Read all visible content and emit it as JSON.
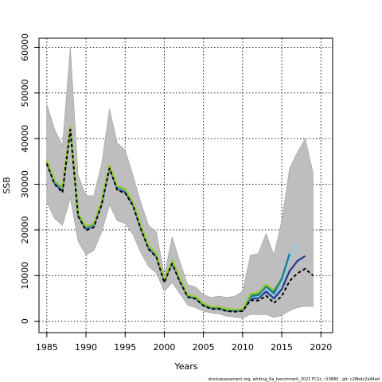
{
  "chart_data": {
    "type": "line",
    "xlabel": "Years",
    "ylabel": "SSB",
    "xlim": [
      1984,
      2021.5
    ],
    "ylim": [
      -2500,
      62000
    ],
    "x_ticks": [
      1985,
      1990,
      1995,
      2000,
      2005,
      2010,
      2015,
      2020
    ],
    "y_ticks": [
      0,
      10000,
      20000,
      30000,
      40000,
      50000,
      60000
    ],
    "grid": true,
    "grid_style": "dotted",
    "footnote": "stockassessment.org, whiting_6a_benchmark_2021 FC2c, r13880 , git: c28bdc2a44ad",
    "band": {
      "color": "#bebebe",
      "years": [
        1985,
        1986,
        1987,
        1988,
        1989,
        1990,
        1991,
        1992,
        1993,
        1994,
        1995,
        1996,
        1997,
        1998,
        1999,
        2000,
        2001,
        2002,
        2003,
        2004,
        2005,
        2006,
        2007,
        2008,
        2009,
        2010,
        2011,
        2012,
        2013,
        2014,
        2015,
        2016,
        2017,
        2018,
        2019
      ],
      "upper": [
        47500,
        42000,
        38500,
        60000,
        32000,
        27500,
        27500,
        34500,
        46500,
        39000,
        37500,
        32000,
        26000,
        21000,
        19500,
        10000,
        18500,
        13000,
        8000,
        7500,
        5800,
        5200,
        5500,
        5200,
        5500,
        6500,
        14500,
        14800,
        19200,
        14500,
        22000,
        33500,
        37000,
        40000,
        32500
      ],
      "lower": [
        26000,
        22500,
        21000,
        27000,
        17500,
        14500,
        15500,
        19500,
        25500,
        22000,
        21500,
        19000,
        15000,
        12000,
        10500,
        6500,
        8500,
        6000,
        3500,
        3000,
        2200,
        1800,
        1600,
        1100,
        900,
        700,
        1500,
        1400,
        1500,
        800,
        1300,
        2300,
        3000,
        3300,
        3200
      ]
    },
    "series": [
      {
        "color": "#000000",
        "style": "dashed",
        "x": [
          1985,
          1986,
          1987,
          1988,
          1989,
          1990,
          1991,
          1992,
          1993,
          1994,
          1995,
          1996,
          1997,
          1998,
          1999,
          2000,
          2001,
          2002,
          2003,
          2004,
          2005,
          2006,
          2007,
          2008,
          2009,
          2010,
          2011,
          2012,
          2013,
          2014,
          2015,
          2016,
          2017,
          2018,
          2019
        ],
        "y": [
          34500,
          30000,
          28200,
          42000,
          23000,
          19900,
          20600,
          25500,
          33500,
          28700,
          28100,
          25300,
          20200,
          15800,
          14000,
          8500,
          12600,
          8600,
          5300,
          4900,
          3400,
          2700,
          2700,
          2200,
          2100,
          2200,
          4600,
          4500,
          5600,
          4000,
          5500,
          8800,
          10500,
          11500,
          10000
        ]
      },
      {
        "color": "#1f3a93",
        "style": "solid",
        "x": [
          1985,
          1986,
          1987,
          1988,
          1989,
          1990,
          1991,
          1992,
          1993,
          1994,
          1995,
          1996,
          1997,
          1998,
          1999,
          2000,
          2001,
          2002,
          2003,
          2004,
          2005,
          2006,
          2007,
          2008,
          2009,
          2010,
          2011,
          2012,
          2013,
          2014,
          2015,
          2016,
          2017,
          2018
        ],
        "y": [
          34700,
          30200,
          28600,
          42200,
          23200,
          20300,
          20800,
          25800,
          33700,
          29000,
          28300,
          25500,
          20400,
          16000,
          14200,
          8600,
          12800,
          8800,
          5400,
          5000,
          3500,
          2800,
          2800,
          2300,
          2200,
          2300,
          5000,
          5000,
          6500,
          5000,
          7000,
          11000,
          13200,
          14300
        ]
      },
      {
        "color": "#87ceeb",
        "style": "solid",
        "x": [
          1985,
          1986,
          1987,
          1988,
          1989,
          1990,
          1991,
          1992,
          1993,
          1994,
          1995,
          1996,
          1997,
          1998,
          1999,
          2000,
          2001,
          2002,
          2003,
          2004,
          2005,
          2006,
          2007,
          2008,
          2009,
          2010,
          2011,
          2012,
          2013,
          2014,
          2015,
          2016,
          2017
        ],
        "y": [
          34900,
          30400,
          29000,
          42300,
          23400,
          20500,
          21000,
          26000,
          33900,
          29200,
          28600,
          25800,
          20600,
          16200,
          14400,
          8700,
          13000,
          9000,
          5500,
          5100,
          3600,
          2900,
          2900,
          2400,
          2300,
          2400,
          5300,
          5400,
          7200,
          5700,
          8500,
          13800,
          16800
        ]
      },
      {
        "color": "#1b7a8c",
        "style": "solid",
        "x": [
          1985,
          1986,
          1987,
          1988,
          1989,
          1990,
          1991,
          1992,
          1993,
          1994,
          1995,
          1996,
          1997,
          1998,
          1999,
          2000,
          2001,
          2002,
          2003,
          2004,
          2005,
          2006,
          2007,
          2008,
          2009,
          2010,
          2011,
          2012,
          2013,
          2014,
          2015,
          2016
        ],
        "y": [
          35000,
          30500,
          29200,
          42400,
          23500,
          20600,
          21200,
          26200,
          34000,
          29400,
          28800,
          26000,
          20800,
          16400,
          14600,
          8800,
          13100,
          9100,
          5600,
          5200,
          3700,
          3000,
          3000,
          2500,
          2400,
          2500,
          5500,
          5700,
          7600,
          6100,
          9300,
          14800
        ]
      },
      {
        "color": "#2e8b57",
        "style": "solid",
        "x": [
          1985,
          1986,
          1987,
          1988,
          1989,
          1990,
          1991,
          1992,
          1993,
          1994,
          1995,
          1996,
          1997,
          1998,
          1999,
          2000,
          2001,
          2002,
          2003,
          2004,
          2005,
          2006,
          2007,
          2008,
          2009,
          2010,
          2011,
          2012,
          2013,
          2014,
          2015
        ],
        "y": [
          35100,
          30600,
          29300,
          42500,
          23600,
          20700,
          21300,
          26300,
          34100,
          29500,
          28900,
          26100,
          20900,
          16500,
          14700,
          8900,
          13200,
          9200,
          5700,
          5300,
          3800,
          3100,
          3100,
          2600,
          2500,
          2600,
          5800,
          6000,
          8000,
          6600,
          9300
        ]
      },
      {
        "color": "#9acd32",
        "style": "solid",
        "x": [
          1985,
          1986,
          1987,
          1988,
          1989,
          1990,
          1991,
          1992,
          1993,
          1994,
          1995,
          1996,
          1997,
          1998,
          1999,
          2000,
          2001,
          2002,
          2003,
          2004,
          2005,
          2006,
          2007,
          2008,
          2009,
          2010,
          2011,
          2012,
          2013,
          2014
        ],
        "y": [
          35200,
          30700,
          29400,
          42600,
          23700,
          20800,
          21400,
          26400,
          34200,
          29600,
          29000,
          26200,
          21000,
          16600,
          14800,
          9000,
          13300,
          9300,
          5800,
          5400,
          3900,
          3200,
          3200,
          2700,
          2600,
          2700,
          6000,
          6300,
          8100,
          6800
        ]
      }
    ]
  }
}
